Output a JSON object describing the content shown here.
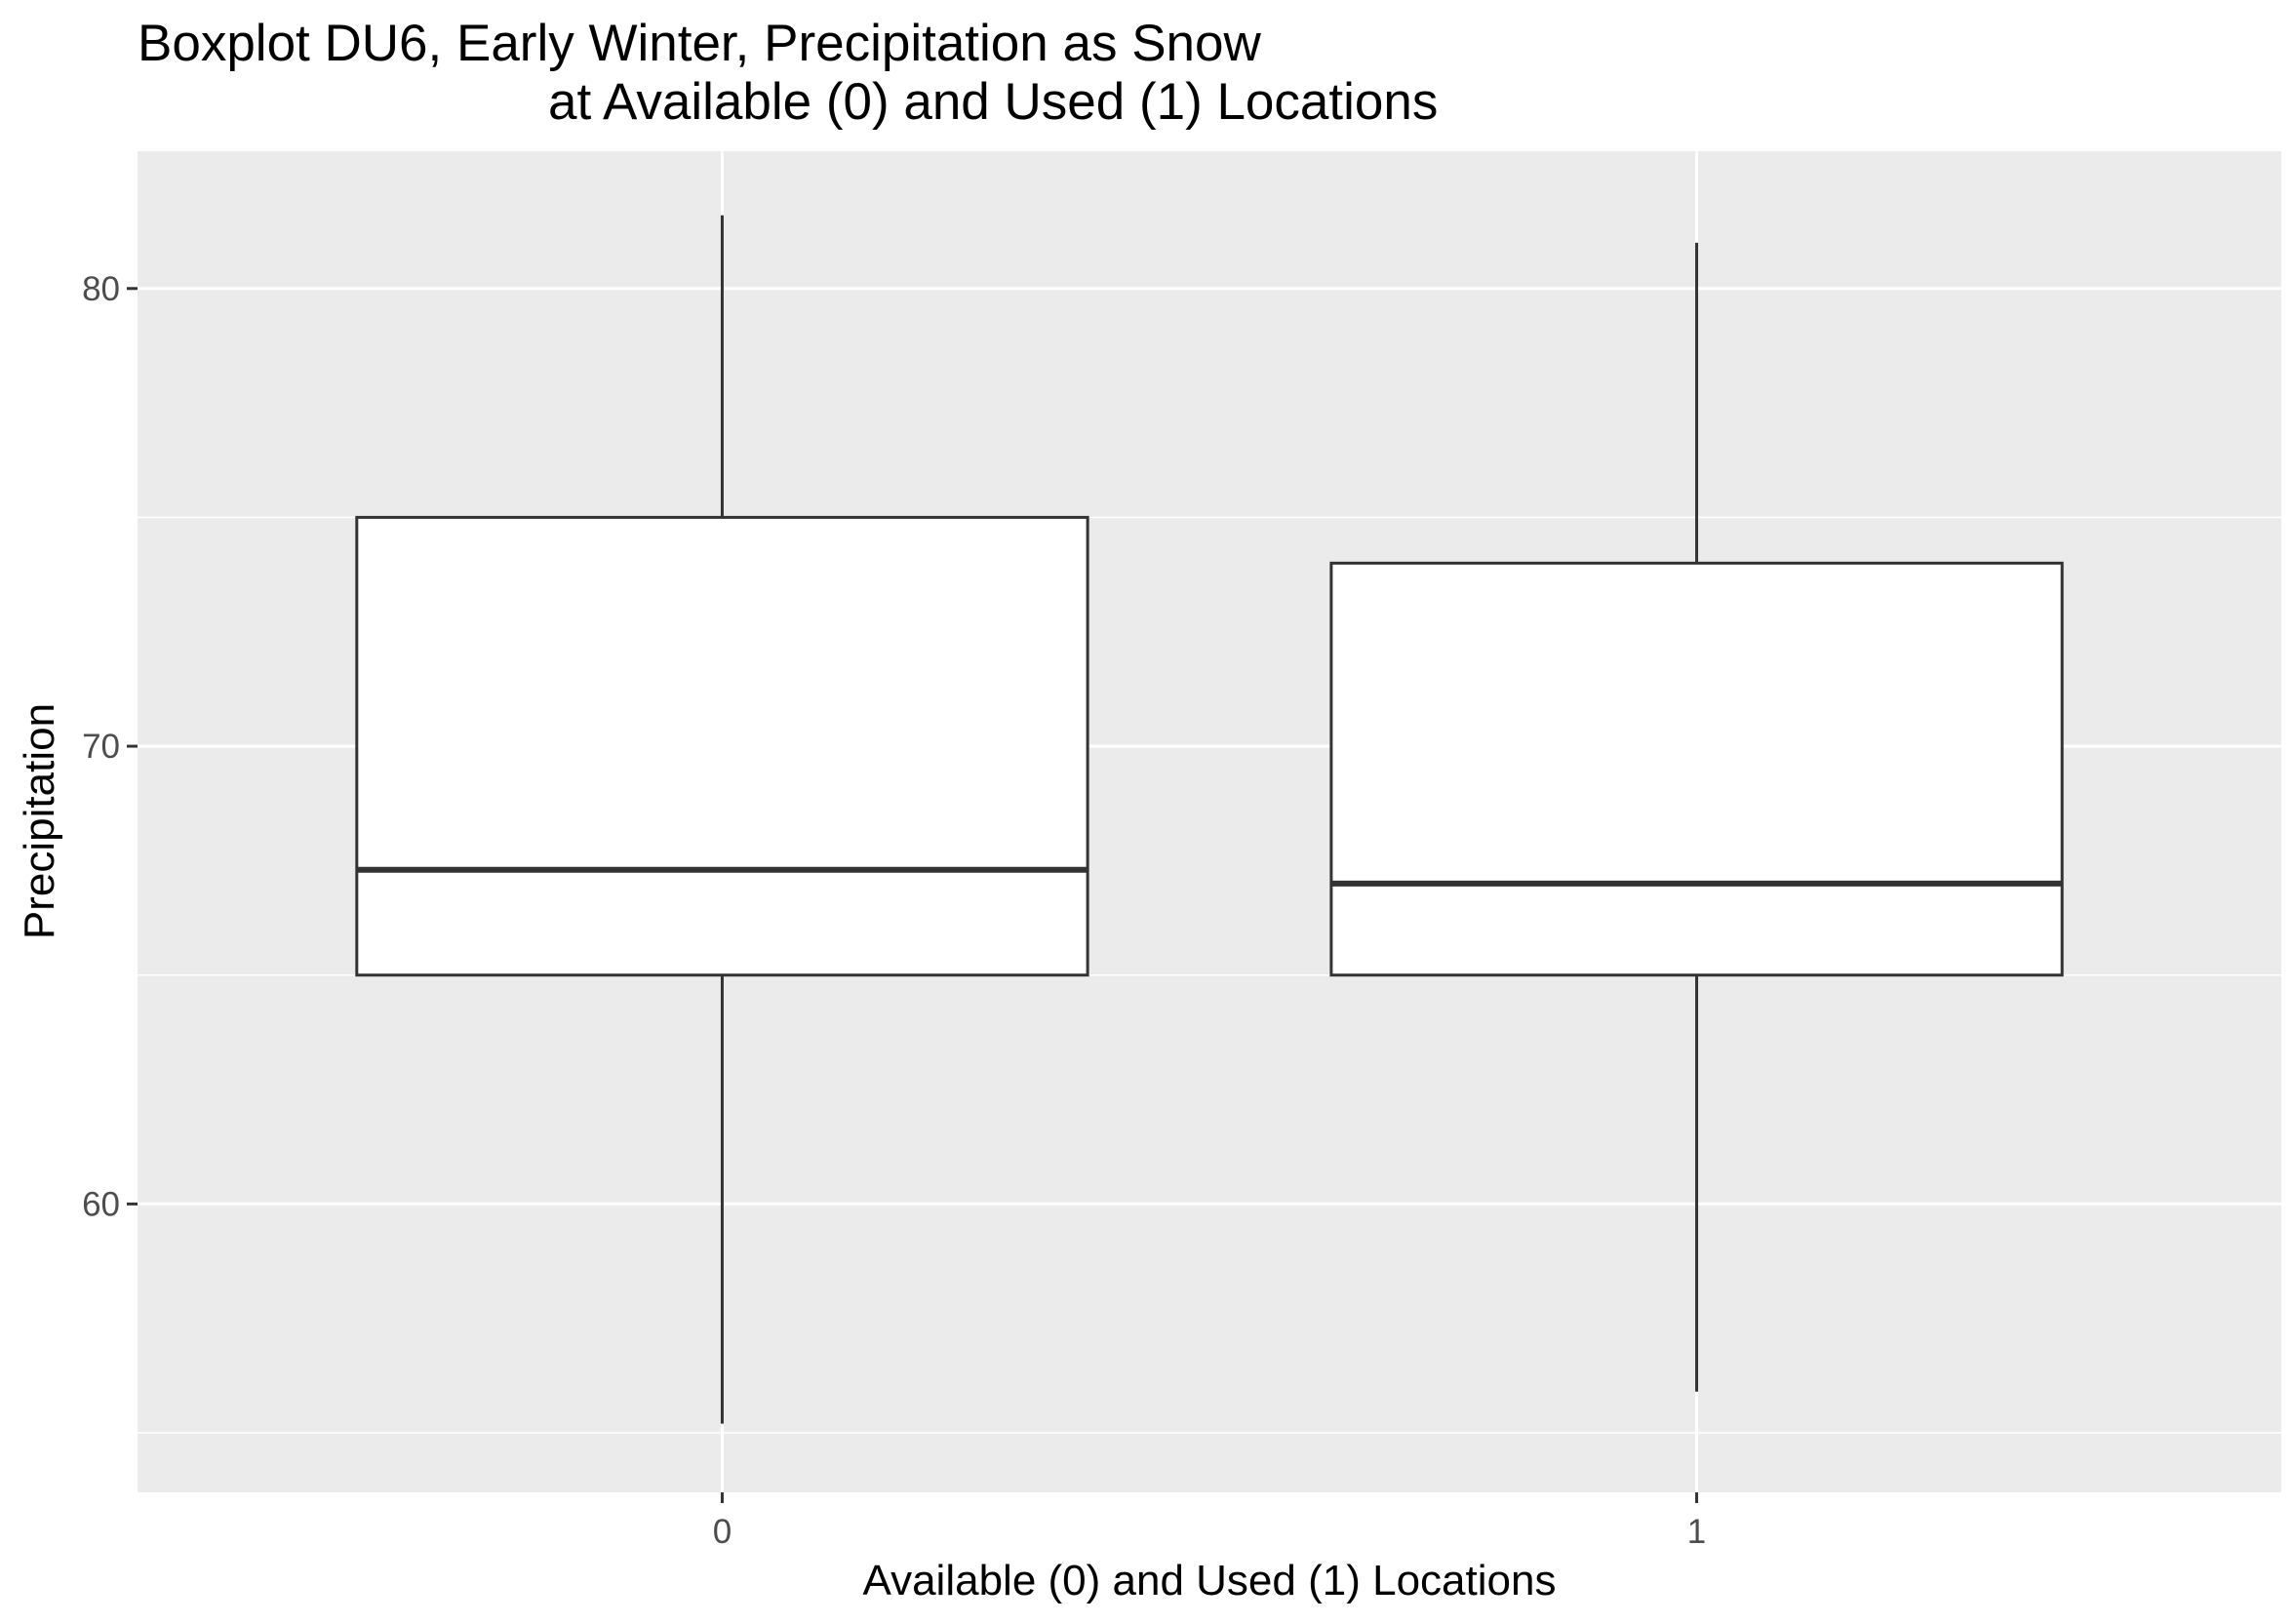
{
  "chart_data": {
    "type": "boxplot",
    "title": "Boxplot DU6, Early Winter, Precipitation as Snow",
    "title_line2": "at Available (0) and Used (1) Locations",
    "xlabel": "Available (0) and Used (1) Locations",
    "ylabel": "Precipitation",
    "categories": [
      "0",
      "1"
    ],
    "ylim": [
      53.7,
      83
    ],
    "y_major_ticks": [
      60,
      70,
      80
    ],
    "y_tick_labels": [
      "60",
      "70",
      "80"
    ],
    "y_minor_gridlines": [
      55,
      65,
      75
    ],
    "grid": true,
    "legend": "none",
    "boxes": [
      {
        "category": "0",
        "whisker_low": 55.2,
        "q1": 65,
        "median": 67.3,
        "q3": 75,
        "whisker_high": 81.6
      },
      {
        "category": "1",
        "whisker_low": 55.9,
        "q1": 65,
        "median": 67,
        "q3": 74,
        "whisker_high": 81
      }
    ],
    "colors": {
      "panel_background": "#ebebeb",
      "gridline": "#ffffff",
      "box_fill": "#ffffff",
      "box_stroke": "#333333",
      "tick_mark": "#333333",
      "tick_text": "#4d4d4d"
    }
  }
}
